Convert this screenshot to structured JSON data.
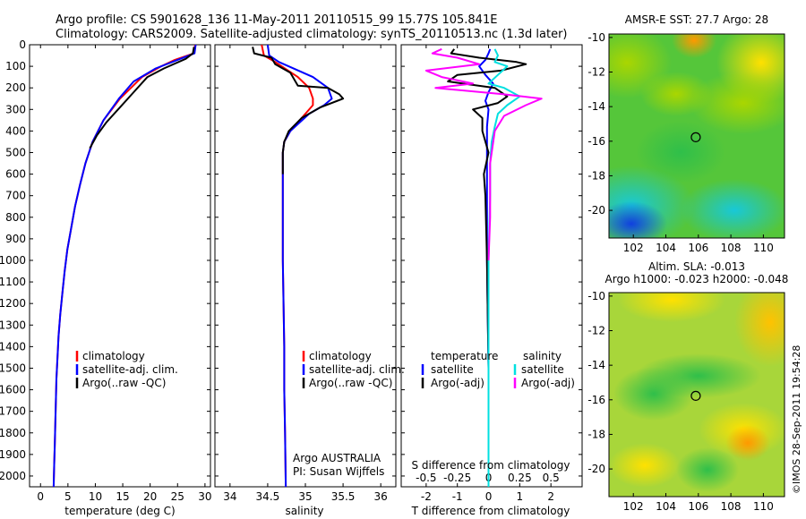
{
  "header": {
    "line1": "Argo profile: CS 5901628_136 11-May-2011 20110515_99 15.77S 105.841E",
    "line2": "Climatology: CARS2009. Satellite-adjusted climatology: synTS_20110513.nc (1.3d later)"
  },
  "credit": "©IMOS 28-Sep-2011 19:54:28",
  "colors": {
    "climatology": "#ff0000",
    "satellite": "#0000ff",
    "argo": "#000000",
    "sal_satellite": "#00e0e0",
    "sal_argo": "#ff00ff"
  },
  "chart_data": [
    {
      "type": "line",
      "panel": "temperature",
      "xlabel": "temperature (deg C)",
      "ylabel": "",
      "xlim": [
        -2,
        31
      ],
      "ylim": [
        2050,
        0
      ],
      "xticks": [
        0,
        5,
        10,
        15,
        20,
        25,
        30
      ],
      "yticks": [
        0,
        100,
        200,
        300,
        400,
        500,
        600,
        700,
        800,
        900,
        1000,
        1100,
        1200,
        1300,
        1400,
        1500,
        1600,
        1700,
        1800,
        1900,
        2000
      ],
      "legend": [
        "climatology",
        "satellite-adj. clim.",
        "Argo(..raw -QC)"
      ],
      "legend_loc": "lower-center",
      "series": [
        {
          "name": "climatology",
          "color": "#ff0000",
          "x": [
            28.2,
            28.0,
            24.5,
            22,
            18.5,
            14.5,
            11.5,
            9.5,
            8.2,
            7.2,
            6.3,
            5.6,
            4.9,
            4.4,
            4.0,
            3.6,
            3.3,
            3.1,
            2.9,
            2.8,
            2.7,
            2.6,
            2.5,
            2.4
          ],
          "y": [
            0,
            40,
            70,
            100,
            150,
            250,
            350,
            450,
            550,
            650,
            750,
            850,
            950,
            1050,
            1150,
            1250,
            1350,
            1450,
            1550,
            1650,
            1750,
            1850,
            1950,
            2050
          ]
        },
        {
          "name": "satellite-adj. clim.",
          "color": "#0000ff",
          "x": [
            28.3,
            28.1,
            25,
            21,
            17,
            14.3,
            11.5,
            9.5,
            8.2,
            7.2,
            6.3,
            5.6,
            4.9,
            4.4,
            4.0,
            3.6,
            3.3,
            3.1,
            2.9,
            2.8,
            2.7,
            2.6,
            2.5,
            2.4
          ],
          "y": [
            0,
            40,
            70,
            110,
            170,
            250,
            350,
            450,
            550,
            650,
            750,
            850,
            950,
            1050,
            1150,
            1250,
            1350,
            1450,
            1550,
            1650,
            1750,
            1850,
            1950,
            2050
          ]
        },
        {
          "name": "Argo(..raw -QC)",
          "color": "#000000",
          "x": [
            28.0,
            27.8,
            26.5,
            22.5,
            19.5,
            17,
            14.5,
            12,
            10.3,
            9
          ],
          "y": [
            10,
            40,
            65,
            110,
            150,
            220,
            290,
            360,
            420,
            480
          ]
        }
      ]
    },
    {
      "type": "line",
      "panel": "salinity",
      "xlabel": "salinity",
      "ylabel": "",
      "xlim": [
        33.8,
        36.2
      ],
      "ylim": [
        2050,
        0
      ],
      "xticks": [
        34,
        34.5,
        35,
        35.5,
        36
      ],
      "legend": [
        "climatology",
        "satellite-adj. clim.",
        "Argo(..raw -QC)"
      ],
      "legend_loc": "lower-right",
      "annotations": [
        "Argo AUSTRALIA",
        "PI: Susan Wijffels"
      ],
      "series": [
        {
          "name": "climatology",
          "color": "#ff0000",
          "x": [
            34.42,
            34.45,
            34.6,
            34.9,
            35.05,
            35.1,
            35.1,
            35.0,
            34.8,
            34.72,
            34.7,
            34.7,
            34.7,
            34.7,
            34.71,
            34.72,
            34.72,
            34.73,
            34.74
          ],
          "y": [
            0,
            50,
            80,
            150,
            200,
            250,
            280,
            320,
            400,
            450,
            500,
            600,
            800,
            1000,
            1200,
            1400,
            1600,
            1800,
            2050
          ]
        },
        {
          "name": "satellite-adj. clim.",
          "color": "#0000ff",
          "x": [
            34.5,
            34.52,
            34.65,
            35.1,
            35.3,
            35.35,
            35.25,
            35.05,
            34.8,
            34.72,
            34.7,
            34.7,
            34.7,
            34.7,
            34.71,
            34.72,
            34.72,
            34.73,
            34.74
          ],
          "y": [
            0,
            50,
            80,
            150,
            200,
            250,
            280,
            320,
            400,
            450,
            500,
            600,
            800,
            1000,
            1200,
            1400,
            1600,
            1800,
            2050
          ]
        },
        {
          "name": "Argo(..raw -QC)",
          "color": "#000000",
          "x": [
            34.3,
            34.32,
            34.55,
            34.6,
            34.8,
            34.9,
            35.3,
            35.45,
            35.5,
            35.2,
            34.95,
            34.78,
            34.72,
            34.7,
            34.7
          ],
          "y": [
            10,
            40,
            60,
            90,
            130,
            190,
            200,
            230,
            250,
            290,
            340,
            400,
            450,
            500,
            600
          ]
        }
      ]
    },
    {
      "type": "line",
      "panel": "difference",
      "xlabel": "T difference from climatology",
      "xlabel_top": "S difference from climatology",
      "xlim": [
        -2.8,
        3.0
      ],
      "ylim": [
        2050,
        0
      ],
      "xticks": [
        -2,
        -1,
        0,
        1,
        2
      ],
      "xticks_top": [
        {
          "label": "-0.5",
          "at": -2
        },
        {
          "label": "-0.25",
          "at": -1
        },
        {
          "label": "0",
          "at": 0
        },
        {
          "label": "0.25",
          "at": 1
        },
        {
          "label": "0.5",
          "at": 2
        }
      ],
      "legend_groups": [
        "temperature",
        "salinity"
      ],
      "legend": [
        "satellite",
        "Argo(-adj)",
        "satellite",
        "Argo(-adj)"
      ],
      "legend_loc": "lower-center",
      "series": [
        {
          "name": "satellite",
          "color": "#0000ff",
          "x": [
            0.05,
            0,
            -0.1,
            -0.3,
            -0.1,
            0.15,
            0,
            -0.1,
            0,
            -0.05,
            -0.05,
            -0.05,
            -0.05,
            0,
            0
          ],
          "y": [
            20,
            40,
            70,
            100,
            140,
            180,
            220,
            260,
            300,
            380,
            500,
            700,
            1000,
            1500,
            2050
          ]
        },
        {
          "name": "Argo(-adj)",
          "color": "#000000",
          "x": [
            -1.1,
            -1.2,
            -0.3,
            0.9,
            1.2,
            0.4,
            -1.0,
            -1.3,
            0.2,
            0.6,
            0.3,
            -0.5,
            -0.2,
            -0.2,
            0,
            -0.15,
            -0.1,
            -0.05,
            0
          ],
          "y": [
            20,
            40,
            60,
            80,
            90,
            120,
            140,
            170,
            200,
            240,
            270,
            300,
            340,
            400,
            500,
            600,
            700,
            1000,
            1500
          ]
        },
        {
          "name": "satellite",
          "color": "#00e0e0",
          "x": [
            0.2,
            0.3,
            0.2,
            0.6,
            0.3,
            0,
            0.5,
            1.0,
            0.6,
            0.3,
            0.2,
            0.1,
            0.05,
            0.05,
            0,
            0,
            0
          ],
          "y": [
            20,
            50,
            80,
            100,
            140,
            180,
            200,
            240,
            280,
            320,
            380,
            450,
            550,
            700,
            1000,
            1500,
            2050
          ]
        },
        {
          "name": "Argo(-adj)",
          "color": "#ff00ff",
          "x": [
            -1.5,
            -1.8,
            -1.0,
            -0.3,
            -2.0,
            -1.5,
            -0.5,
            -1.7,
            0.5,
            1.7,
            1.2,
            0.5,
            0.2,
            0.05,
            0.05,
            0
          ],
          "y": [
            20,
            40,
            60,
            90,
            120,
            150,
            180,
            200,
            230,
            250,
            280,
            330,
            400,
            550,
            800,
            1000
          ]
        }
      ]
    },
    {
      "type": "heatmap",
      "panel": "sst-map",
      "title": "AMSR-E SST: 27.7 Argo: 28",
      "xlim": [
        100.5,
        111.3
      ],
      "ylim": [
        -21.6,
        -9.8
      ],
      "xticks": [
        102,
        104,
        106,
        108,
        110
      ],
      "yticks": [
        -10,
        -12,
        -14,
        -16,
        -18,
        -20
      ],
      "marker": {
        "lon": 105.84,
        "lat": -15.77
      }
    },
    {
      "type": "heatmap",
      "panel": "sla-map",
      "title": "Altim. SLA: -0.013",
      "subtitle": "Argo h1000: -0.023 h2000: -0.048",
      "xlim": [
        100.5,
        111.3
      ],
      "ylim": [
        -21.6,
        -9.8
      ],
      "xticks": [
        102,
        104,
        106,
        108,
        110
      ],
      "yticks": [
        -10,
        -12,
        -14,
        -16,
        -18,
        -20
      ],
      "marker": {
        "lon": 105.84,
        "lat": -15.77
      }
    }
  ]
}
